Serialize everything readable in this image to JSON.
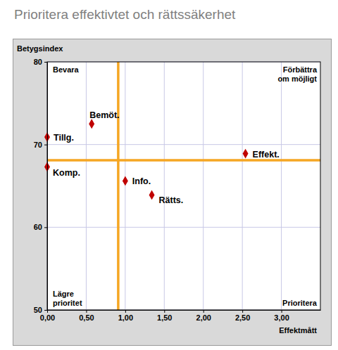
{
  "chart_data": {
    "type": "scatter",
    "title": "Prioritera effektivtet och rättssäkerhet",
    "x_label": "Effektmått",
    "y_label": "Betygsindex",
    "point_labels": [
      "Tillg.",
      "Bemöt.",
      "Komp.",
      "Info.",
      "Rätts.",
      "Effekt."
    ],
    "x": [
      0.0,
      0.57,
      0.0,
      1.0,
      1.34,
      2.54
    ],
    "values": [
      70.9,
      72.5,
      67.3,
      65.6,
      63.9,
      68.9
    ],
    "color": "#c00000",
    "marker": "diamond",
    "reference_lines": {
      "x": 0.91,
      "y": 68.1
    },
    "quadrant_labels": {
      "top_left": [
        "Bevara"
      ],
      "top_right": [
        "Förbättra",
        "om möjligt"
      ],
      "bottom_left": [
        "Lägre",
        "prioritet"
      ],
      "bottom_right": [
        "Prioritera"
      ]
    },
    "xlim": [
      0,
      3.5
    ],
    "xticks": [
      {
        "value": 0,
        "label": "0,00"
      },
      {
        "value": 0.5,
        "label": "0,50"
      },
      {
        "value": 1,
        "label": "1,00"
      },
      {
        "value": 1.5,
        "label": "1,50"
      },
      {
        "value": 2,
        "label": "2,00"
      },
      {
        "value": 2.5,
        "label": "2,50"
      },
      {
        "value": 3,
        "label": "3,00"
      }
    ],
    "ylim": [
      50,
      80
    ],
    "yticks": [
      50,
      60,
      70,
      80
    ],
    "grid": true
  }
}
